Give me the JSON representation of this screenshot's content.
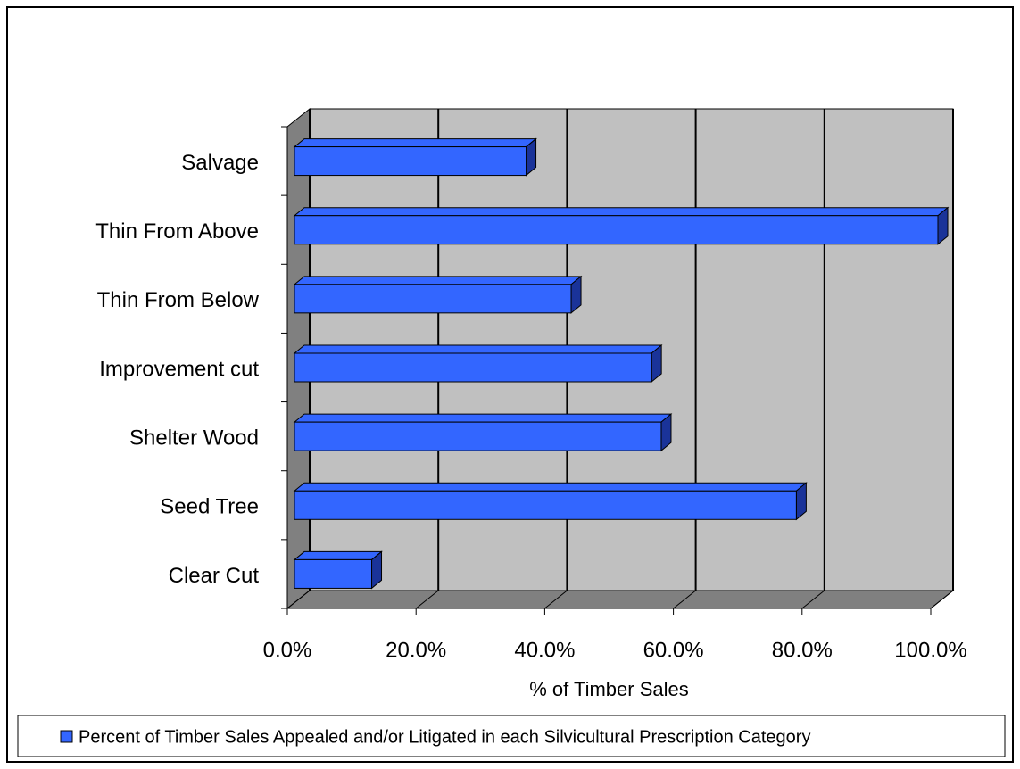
{
  "chart_data": {
    "type": "bar3d_horizontal",
    "categories": [
      "Salvage",
      "Thin From Above",
      "Thin From Below",
      "Improvement cut",
      "Shelter Wood",
      "Seed Tree",
      "Clear Cut"
    ],
    "series": [
      {
        "name": "Percent of Timber Sales Appealed and/or Litigated in each Silvicultural  Prescription Category",
        "color": "#3366ff",
        "values": [
          36,
          100,
          43,
          55.5,
          57,
          78,
          12
        ]
      }
    ],
    "xlabel": "% of Timber Sales",
    "xlim": [
      0,
      100
    ],
    "xticks": [
      {
        "value": 0,
        "label": "0.0%"
      },
      {
        "value": 20,
        "label": "20.0%"
      },
      {
        "value": 40,
        "label": "40.0%"
      },
      {
        "value": 60,
        "label": "60.0%"
      },
      {
        "value": 80,
        "label": "80.0%"
      },
      {
        "value": 100,
        "label": "100.0%"
      }
    ],
    "grid": true,
    "legend": "bottom"
  }
}
